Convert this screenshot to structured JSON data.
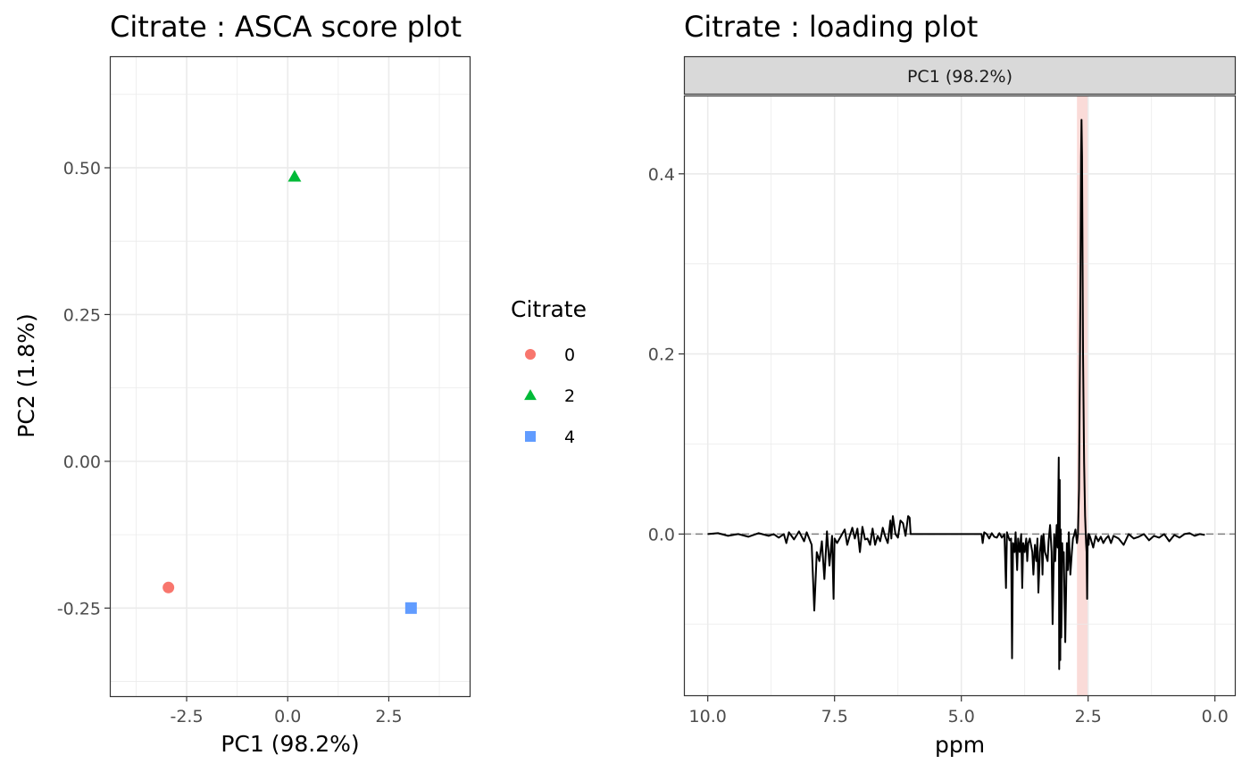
{
  "chart_data": [
    {
      "type": "scatter",
      "title": "Citrate : ASCA score plot",
      "xlabel": "PC1 (98.2%)",
      "ylabel": "PC2 (1.8%)",
      "xlim": [
        -4.4,
        4.5
      ],
      "ylim": [
        -0.4,
        0.69
      ],
      "x_ticks": [
        -2.5,
        0.0,
        2.5
      ],
      "x_tick_labels": [
        "-2.5",
        "0.0",
        "2.5"
      ],
      "y_ticks": [
        -0.25,
        0.0,
        0.25,
        0.5
      ],
      "y_tick_labels": [
        "-0.25",
        "0.00",
        "0.25",
        "0.50"
      ],
      "grid": true,
      "legend": {
        "title": "Citrate",
        "placement": "right",
        "entries": [
          {
            "label": "0",
            "shape": "circle",
            "color": "#F8766D"
          },
          {
            "label": "2",
            "shape": "triangle",
            "color": "#00BA38"
          },
          {
            "label": "4",
            "shape": "square",
            "color": "#619CFF"
          }
        ]
      },
      "points": [
        {
          "group": "0",
          "x": -2.95,
          "y": -0.215
        },
        {
          "group": "2",
          "x": 0.17,
          "y": 0.485
        },
        {
          "group": "4",
          "x": 3.05,
          "y": -0.25
        }
      ]
    },
    {
      "type": "line",
      "title": "Citrate : loading plot",
      "facet_label": "PC1 (98.2%)",
      "xlabel": "ppm",
      "ylabel": "",
      "x_reversed": true,
      "xlim": [
        10.47,
        -0.41
      ],
      "ylim": [
        -0.18,
        0.487
      ],
      "x_ticks": [
        10.0,
        7.5,
        5.0,
        2.5,
        0.0
      ],
      "x_tick_labels": [
        "10.0",
        "7.5",
        "5.0",
        "2.5",
        "0.0"
      ],
      "y_ticks": [
        0.0,
        0.2,
        0.4
      ],
      "y_tick_labels": [
        "0.0",
        "0.2",
        "0.4"
      ],
      "grid": true,
      "reference_line": {
        "y": 0.0,
        "style": "dashed",
        "color": "#808080"
      },
      "highlight_band": {
        "x_from": 2.72,
        "x_to": 2.5,
        "color": "#FADBD8"
      },
      "series": [
        {
          "color": "#000000",
          "x": [
            10.0,
            9.8,
            9.6,
            9.4,
            9.2,
            9.0,
            8.8,
            8.7,
            8.6,
            8.5,
            8.45,
            8.4,
            8.3,
            8.2,
            8.1,
            8.05,
            8.0,
            7.95,
            7.9,
            7.85,
            7.8,
            7.75,
            7.7,
            7.65,
            7.6,
            7.55,
            7.52,
            7.5,
            7.45,
            7.4,
            7.3,
            7.25,
            7.2,
            7.15,
            7.1,
            7.05,
            7.0,
            6.95,
            6.9,
            6.85,
            6.8,
            6.75,
            6.7,
            6.65,
            6.6,
            6.55,
            6.5,
            6.45,
            6.4,
            6.38,
            6.35,
            6.3,
            6.25,
            6.2,
            6.15,
            6.1,
            6.05,
            6.02,
            6.0,
            5.5,
            5.0,
            4.6,
            4.58,
            4.55,
            4.5,
            4.45,
            4.4,
            4.35,
            4.3,
            4.25,
            4.2,
            4.15,
            4.12,
            4.1,
            4.05,
            4.02,
            4.0,
            3.98,
            3.95,
            3.93,
            3.9,
            3.88,
            3.85,
            3.82,
            3.8,
            3.78,
            3.75,
            3.72,
            3.7,
            3.68,
            3.65,
            3.6,
            3.58,
            3.55,
            3.52,
            3.5,
            3.48,
            3.45,
            3.42,
            3.4,
            3.38,
            3.35,
            3.3,
            3.28,
            3.25,
            3.22,
            3.2,
            3.17,
            3.15,
            3.12,
            3.1,
            3.08,
            3.07,
            3.06,
            3.05,
            3.04,
            3.03,
            3.02,
            3.01,
            3.0,
            2.98,
            2.95,
            2.92,
            2.9,
            2.88,
            2.85,
            2.82,
            2.8,
            2.78,
            2.75,
            2.72,
            2.7,
            2.68,
            2.66,
            2.65,
            2.64,
            2.63,
            2.62,
            2.61,
            2.6,
            2.58,
            2.56,
            2.54,
            2.53,
            2.52,
            2.51,
            2.5,
            2.49,
            2.48,
            2.45,
            2.4,
            2.35,
            2.3,
            2.25,
            2.2,
            2.15,
            2.1,
            2.05,
            2.0,
            1.9,
            1.8,
            1.7,
            1.6,
            1.5,
            1.4,
            1.3,
            1.2,
            1.1,
            1.0,
            0.9,
            0.8,
            0.7,
            0.6,
            0.5,
            0.4,
            0.3,
            0.2
          ],
          "y": [
            0.0,
            0.001,
            -0.002,
            0.0,
            -0.003,
            0.001,
            -0.002,
            0.0,
            -0.004,
            0.0,
            -0.01,
            0.002,
            -0.006,
            0.003,
            -0.008,
            0.002,
            -0.005,
            -0.012,
            -0.085,
            -0.02,
            -0.03,
            -0.008,
            -0.05,
            0.003,
            -0.035,
            -0.002,
            -0.072,
            -0.005,
            -0.01,
            -0.005,
            0.005,
            -0.012,
            -0.002,
            0.007,
            -0.005,
            0.006,
            -0.02,
            0.008,
            -0.006,
            -0.005,
            -0.012,
            0.006,
            -0.012,
            -0.002,
            -0.008,
            0.007,
            -0.003,
            -0.01,
            0.015,
            -0.005,
            0.02,
            0.0,
            -0.004,
            0.015,
            0.012,
            -0.002,
            0.02,
            0.018,
            0.0,
            0.0,
            0.0,
            0.0,
            -0.01,
            0.002,
            0.0,
            -0.005,
            0.001,
            -0.003,
            -0.004,
            0.001,
            -0.004,
            0.0,
            -0.06,
            0.002,
            -0.007,
            -0.005,
            -0.138,
            -0.01,
            -0.02,
            0.002,
            -0.04,
            -0.005,
            -0.02,
            0.0,
            -0.06,
            -0.01,
            -0.02,
            -0.005,
            -0.03,
            -0.01,
            -0.005,
            -0.02,
            -0.045,
            -0.012,
            -0.03,
            -0.005,
            -0.065,
            -0.02,
            -0.002,
            -0.045,
            0.0,
            -0.02,
            -0.03,
            -0.008,
            0.01,
            -0.02,
            -0.1,
            0.0,
            -0.03,
            0.01,
            -0.015,
            0.085,
            -0.15,
            0.06,
            -0.14,
            0.005,
            -0.115,
            -0.075,
            -0.01,
            -0.03,
            -0.02,
            -0.12,
            -0.01,
            -0.04,
            0.002,
            -0.045,
            -0.02,
            -0.005,
            -0.002,
            0.005,
            -0.01,
            0.0,
            0.05,
            0.2,
            0.3,
            0.42,
            0.46,
            0.42,
            0.3,
            0.2,
            0.08,
            0.02,
            -0.01,
            -0.02,
            -0.072,
            -0.01,
            0.0,
            -0.012,
            0.0,
            -0.005,
            -0.015,
            -0.002,
            -0.008,
            -0.003,
            -0.01,
            -0.005,
            -0.002,
            -0.01,
            -0.002,
            -0.005,
            -0.012,
            0.0,
            -0.005,
            -0.003,
            0.0,
            -0.007,
            -0.002,
            -0.004,
            0.0,
            -0.008,
            -0.001,
            -0.004,
            0.0,
            0.001,
            -0.002,
            0.0,
            -0.001
          ]
        }
      ]
    }
  ]
}
